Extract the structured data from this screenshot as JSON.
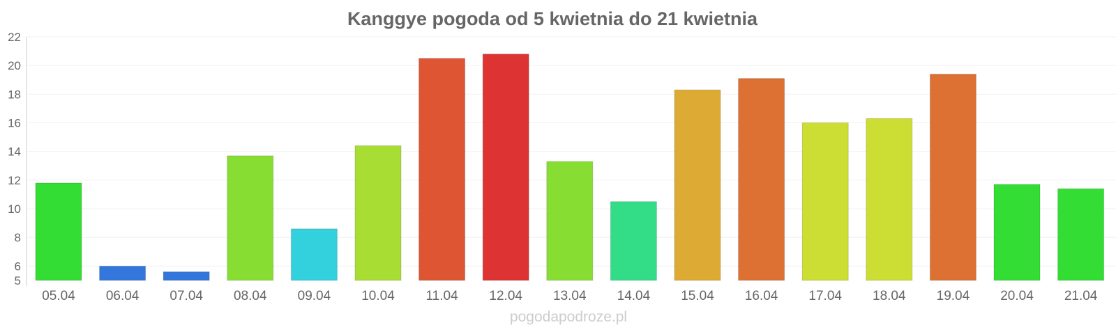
{
  "chart_data": {
    "type": "bar",
    "title": "Kanggye pogoda od 5 kwietnia do 21 kwietnia",
    "categories": [
      "05.04",
      "06.04",
      "07.04",
      "08.04",
      "09.04",
      "10.04",
      "11.04",
      "12.04",
      "13.04",
      "14.04",
      "15.04",
      "16.04",
      "17.04",
      "18.04",
      "19.04",
      "20.04",
      "21.04"
    ],
    "values": [
      11.8,
      6.0,
      5.6,
      13.7,
      8.6,
      14.4,
      20.5,
      20.8,
      13.3,
      10.5,
      18.3,
      19.1,
      16.0,
      16.3,
      19.4,
      11.7,
      11.4
    ],
    "bar_colors": [
      "#33dd33",
      "#3377dd",
      "#3377dd",
      "#88dd33",
      "#33d0dd",
      "#a8dd33",
      "#dd5533",
      "#dd3333",
      "#88dd33",
      "#33dd88",
      "#ddaa33",
      "#dd7033",
      "#ccdd33",
      "#ccdd33",
      "#dd7033",
      "#33dd33",
      "#33dd33"
    ],
    "yticks": [
      5,
      6,
      8,
      10,
      12,
      14,
      16,
      18,
      20,
      22
    ],
    "ylim": [
      5,
      22
    ],
    "grid": true,
    "xlabel": "",
    "ylabel": ""
  },
  "footer": {
    "credit": "pogodapodroze.pl"
  }
}
